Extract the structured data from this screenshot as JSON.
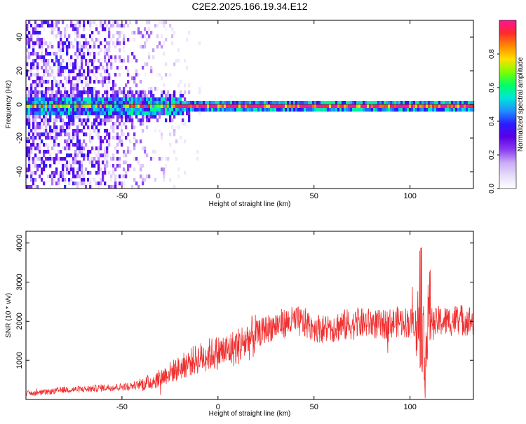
{
  "title": "C2E2.2025.166.19.34.E12",
  "colors": {
    "frame": "#000000",
    "snr_line": "#f03030",
    "spectrogram_cmap": [
      "#ffffff",
      "#e8dcfb",
      "#c9acf6",
      "#8a3cf0",
      "#5a00e6",
      "#2a1cff",
      "#1e90ff",
      "#00e5d8",
      "#00ff66",
      "#7cff00",
      "#ffe000",
      "#ff8a00",
      "#ff2a2a",
      "#ff1493"
    ]
  },
  "chart_data": [
    {
      "type": "heatmap",
      "xlabel": "Height of straight line (km)",
      "ylabel": "Frequency (Hz)",
      "xlim": [
        -100,
        133
      ],
      "ylim": [
        -50,
        50
      ],
      "x_ticks": [
        -50,
        0,
        50,
        100
      ],
      "y_ticks": [
        -40,
        -20,
        0,
        20,
        40
      ],
      "colorbar": {
        "label": "Normalized spectral amplitude",
        "range": [
          0.0,
          1.0
        ],
        "ticks": [
          0.0,
          0.2,
          0.4,
          0.6,
          0.8
        ],
        "tick_labels": [
          "0.0",
          "0.2",
          "0.4",
          "0.6",
          "0.8"
        ]
      },
      "grid": false
    },
    {
      "type": "line",
      "xlabel": "Height of straight line (km)",
      "ylabel": "SNR (10 * v/v)",
      "xlim": [
        -100,
        133
      ],
      "ylim": [
        0,
        4300
      ],
      "x_ticks": [
        -50,
        0,
        50,
        100
      ],
      "y_ticks": [
        1000,
        2000,
        3000,
        4000
      ],
      "grid": false,
      "series": [
        {
          "x": [
            -100,
            -90,
            -80,
            -70,
            -60,
            -50,
            -40,
            -35,
            -30,
            -25,
            -20,
            -15,
            -10,
            -5,
            0,
            5,
            10,
            15,
            20,
            25,
            30,
            35,
            40,
            45,
            50,
            55,
            60,
            65,
            70,
            75,
            80,
            85,
            90,
            95,
            100,
            102,
            104,
            106,
            108,
            110,
            112,
            115,
            120,
            125,
            133
          ],
          "values": [
            150,
            180,
            250,
            260,
            300,
            320,
            380,
            450,
            550,
            700,
            800,
            950,
            1050,
            1150,
            1200,
            1250,
            1350,
            1500,
            1650,
            1800,
            1900,
            1950,
            2000,
            1950,
            1850,
            1800,
            1850,
            1900,
            1900,
            1950,
            1950,
            1900,
            1950,
            2000,
            1950,
            2000,
            1900,
            2100,
            1000,
            2400,
            1900,
            2000,
            2000,
            2050,
            2000
          ]
        }
      ]
    }
  ]
}
